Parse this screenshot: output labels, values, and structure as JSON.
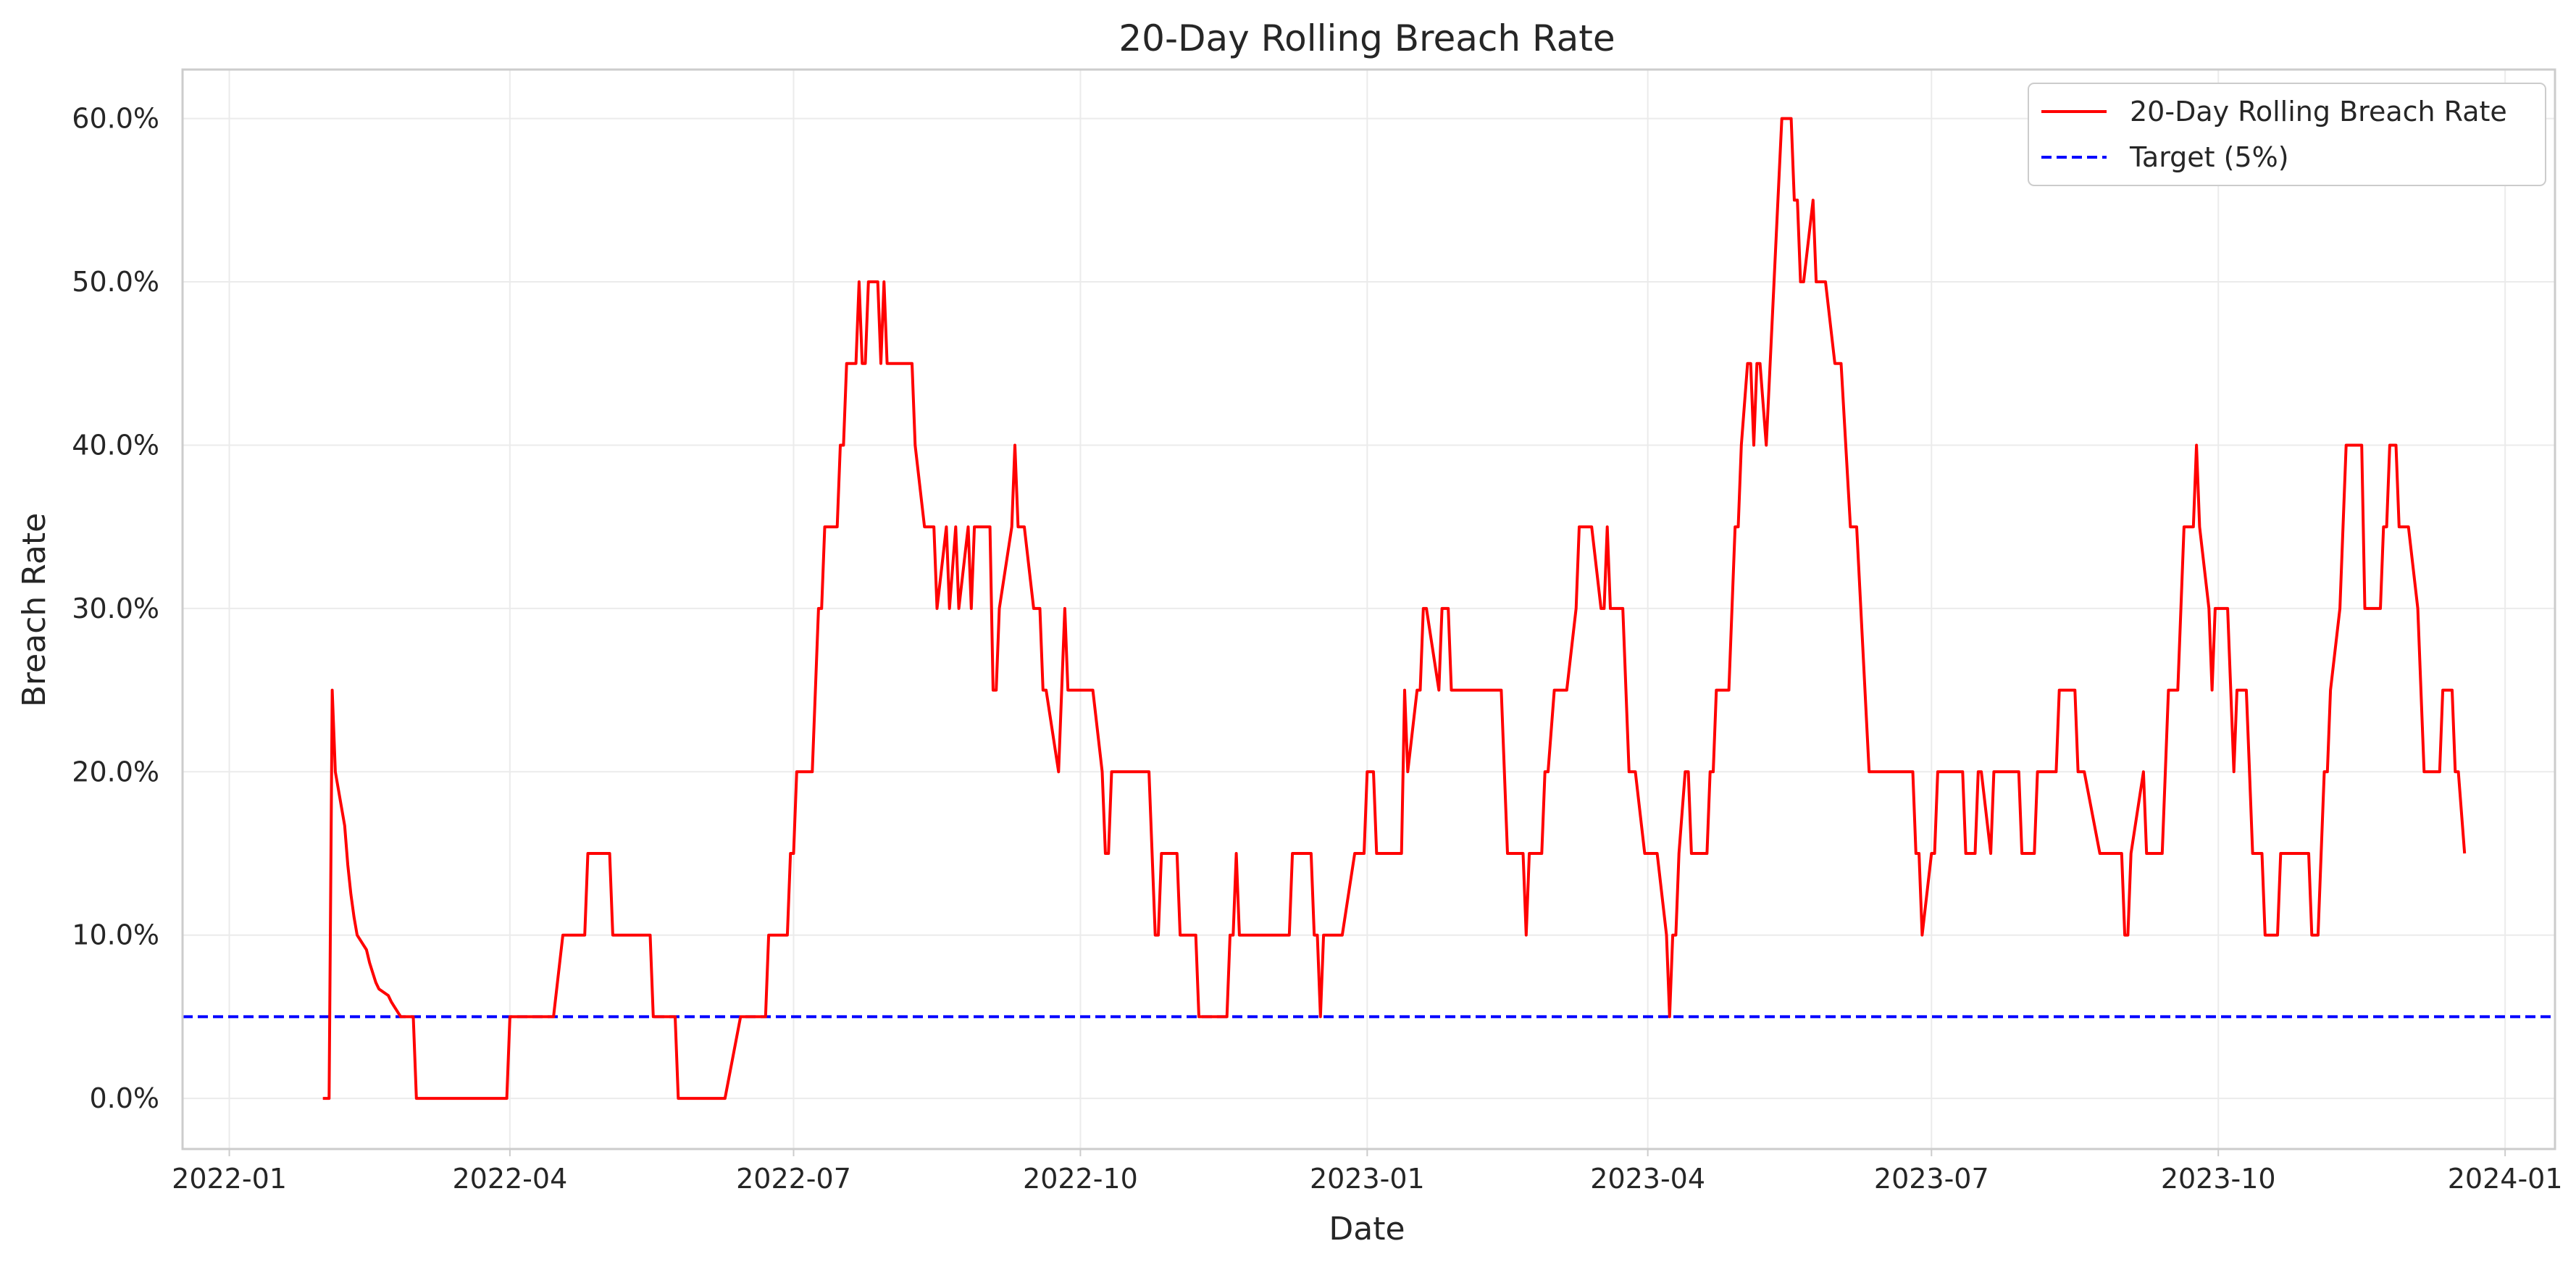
{
  "chart_data": {
    "type": "line",
    "title": "20-Day Rolling Breach Rate",
    "xlabel": "Date",
    "ylabel": "Breach Rate",
    "x_axis_type": "date",
    "xlim": [
      "2021-12-17",
      "2024-01-17"
    ],
    "ylim": [
      -0.031,
      0.63
    ],
    "x_ticks": [
      "2022-01",
      "2022-04",
      "2022-07",
      "2022-10",
      "2023-01",
      "2023-04",
      "2023-07",
      "2023-10",
      "2024-01"
    ],
    "y_ticks": [
      0.0,
      0.1,
      0.2,
      0.3,
      0.4,
      0.5,
      0.6
    ],
    "y_tick_labels": [
      "0.0%",
      "10.0%",
      "20.0%",
      "30.0%",
      "40.0%",
      "50.0%",
      "60.0%"
    ],
    "grid": true,
    "legend_position": "top-right",
    "series": [
      {
        "name": "20-Day Rolling Breach Rate",
        "color": "#ff0000",
        "style": "solid",
        "points": [
          [
            "2022-01-31",
            0.0
          ],
          [
            "2022-02-02",
            0.0
          ],
          [
            "2022-02-03",
            0.25
          ],
          [
            "2022-02-04",
            0.2
          ],
          [
            "2022-02-07",
            0.167
          ],
          [
            "2022-02-08",
            0.143
          ],
          [
            "2022-02-09",
            0.125
          ],
          [
            "2022-02-10",
            0.111
          ],
          [
            "2022-02-11",
            0.1
          ],
          [
            "2022-02-14",
            0.091
          ],
          [
            "2022-02-15",
            0.083
          ],
          [
            "2022-02-16",
            0.077
          ],
          [
            "2022-02-17",
            0.071
          ],
          [
            "2022-02-18",
            0.067
          ],
          [
            "2022-02-21",
            0.063
          ],
          [
            "2022-02-22",
            0.059
          ],
          [
            "2022-02-23",
            0.056
          ],
          [
            "2022-02-24",
            0.053
          ],
          [
            "2022-02-25",
            0.05
          ],
          [
            "2022-02-28",
            0.05
          ],
          [
            "2022-03-01",
            0.05
          ],
          [
            "2022-03-02",
            0.0
          ],
          [
            "2022-03-31",
            0.0
          ],
          [
            "2022-04-01",
            0.05
          ],
          [
            "2022-04-15",
            0.05
          ],
          [
            "2022-04-18",
            0.1
          ],
          [
            "2022-04-25",
            0.1
          ],
          [
            "2022-04-26",
            0.15
          ],
          [
            "2022-05-03",
            0.15
          ],
          [
            "2022-05-04",
            0.1
          ],
          [
            "2022-05-16",
            0.1
          ],
          [
            "2022-05-17",
            0.05
          ],
          [
            "2022-05-24",
            0.05
          ],
          [
            "2022-05-25",
            0.0
          ],
          [
            "2022-06-09",
            0.0
          ],
          [
            "2022-06-14",
            0.05
          ],
          [
            "2022-06-22",
            0.05
          ],
          [
            "2022-06-23",
            0.1
          ],
          [
            "2022-06-29",
            0.1
          ],
          [
            "2022-06-30",
            0.15
          ],
          [
            "2022-07-01",
            0.15
          ],
          [
            "2022-07-02",
            0.2
          ],
          [
            "2022-07-07",
            0.2
          ],
          [
            "2022-07-09",
            0.3
          ],
          [
            "2022-07-10",
            0.3
          ],
          [
            "2022-07-11",
            0.35
          ],
          [
            "2022-07-15",
            0.35
          ],
          [
            "2022-07-16",
            0.4
          ],
          [
            "2022-07-17",
            0.4
          ],
          [
            "2022-07-18",
            0.45
          ],
          [
            "2022-07-21",
            0.45
          ],
          [
            "2022-07-22",
            0.5
          ],
          [
            "2022-07-23",
            0.45
          ],
          [
            "2022-07-24",
            0.45
          ],
          [
            "2022-07-25",
            0.5
          ],
          [
            "2022-07-28",
            0.5
          ],
          [
            "2022-07-29",
            0.45
          ],
          [
            "2022-07-30",
            0.5
          ],
          [
            "2022-07-31",
            0.45
          ],
          [
            "2022-08-08",
            0.45
          ],
          [
            "2022-08-09",
            0.4
          ],
          [
            "2022-08-12",
            0.35
          ],
          [
            "2022-08-15",
            0.35
          ],
          [
            "2022-08-16",
            0.3
          ],
          [
            "2022-08-19",
            0.35
          ],
          [
            "2022-08-20",
            0.3
          ],
          [
            "2022-08-22",
            0.35
          ],
          [
            "2022-08-23",
            0.3
          ],
          [
            "2022-08-26",
            0.35
          ],
          [
            "2022-08-27",
            0.3
          ],
          [
            "2022-08-28",
            0.35
          ],
          [
            "2022-09-02",
            0.35
          ],
          [
            "2022-09-03",
            0.25
          ],
          [
            "2022-09-04",
            0.25
          ],
          [
            "2022-09-05",
            0.3
          ],
          [
            "2022-09-09",
            0.35
          ],
          [
            "2022-09-10",
            0.4
          ],
          [
            "2022-09-11",
            0.35
          ],
          [
            "2022-09-13",
            0.35
          ],
          [
            "2022-09-16",
            0.3
          ],
          [
            "2022-09-18",
            0.3
          ],
          [
            "2022-09-19",
            0.25
          ],
          [
            "2022-09-20",
            0.25
          ],
          [
            "2022-09-24",
            0.2
          ],
          [
            "2022-09-26",
            0.3
          ],
          [
            "2022-09-27",
            0.25
          ],
          [
            "2022-10-05",
            0.25
          ],
          [
            "2022-10-08",
            0.2
          ],
          [
            "2022-10-09",
            0.15
          ],
          [
            "2022-10-10",
            0.15
          ],
          [
            "2022-10-11",
            0.2
          ],
          [
            "2022-10-23",
            0.2
          ],
          [
            "2022-10-25",
            0.1
          ],
          [
            "2022-10-26",
            0.1
          ],
          [
            "2022-10-27",
            0.15
          ],
          [
            "2022-11-01",
            0.15
          ],
          [
            "2022-11-02",
            0.1
          ],
          [
            "2022-11-07",
            0.1
          ],
          [
            "2022-11-08",
            0.05
          ],
          [
            "2022-11-17",
            0.05
          ],
          [
            "2022-11-18",
            0.1
          ],
          [
            "2022-11-19",
            0.1
          ],
          [
            "2022-11-20",
            0.15
          ],
          [
            "2022-11-21",
            0.1
          ],
          [
            "2022-12-07",
            0.1
          ],
          [
            "2022-12-08",
            0.15
          ],
          [
            "2022-12-14",
            0.15
          ],
          [
            "2022-12-15",
            0.1
          ],
          [
            "2022-12-16",
            0.1
          ],
          [
            "2022-12-17",
            0.05
          ],
          [
            "2022-12-18",
            0.1
          ],
          [
            "2022-12-24",
            0.1
          ],
          [
            "2022-12-28",
            0.15
          ],
          [
            "2022-12-31",
            0.15
          ],
          [
            "2023-01-01",
            0.2
          ],
          [
            "2023-01-03",
            0.2
          ],
          [
            "2023-01-04",
            0.15
          ],
          [
            "2023-01-12",
            0.15
          ],
          [
            "2023-01-13",
            0.25
          ],
          [
            "2023-01-14",
            0.2
          ],
          [
            "2023-01-17",
            0.25
          ],
          [
            "2023-01-18",
            0.25
          ],
          [
            "2023-01-19",
            0.3
          ],
          [
            "2023-01-20",
            0.3
          ],
          [
            "2023-01-24",
            0.25
          ],
          [
            "2023-01-25",
            0.3
          ],
          [
            "2023-01-27",
            0.3
          ],
          [
            "2023-01-28",
            0.25
          ],
          [
            "2023-02-13",
            0.25
          ],
          [
            "2023-02-15",
            0.15
          ],
          [
            "2023-02-20",
            0.15
          ],
          [
            "2023-02-21",
            0.1
          ],
          [
            "2023-02-22",
            0.15
          ],
          [
            "2023-02-26",
            0.15
          ],
          [
            "2023-02-27",
            0.2
          ],
          [
            "2023-02-28",
            0.2
          ],
          [
            "2023-03-02",
            0.25
          ],
          [
            "2023-03-06",
            0.25
          ],
          [
            "2023-03-09",
            0.3
          ],
          [
            "2023-03-10",
            0.35
          ],
          [
            "2023-03-14",
            0.35
          ],
          [
            "2023-03-17",
            0.3
          ],
          [
            "2023-03-18",
            0.3
          ],
          [
            "2023-03-19",
            0.35
          ],
          [
            "2023-03-20",
            0.3
          ],
          [
            "2023-03-24",
            0.3
          ],
          [
            "2023-03-26",
            0.2
          ],
          [
            "2023-03-28",
            0.2
          ],
          [
            "2023-03-31",
            0.15
          ],
          [
            "2023-04-04",
            0.15
          ],
          [
            "2023-04-07",
            0.1
          ],
          [
            "2023-04-08",
            0.05
          ],
          [
            "2023-04-09",
            0.1
          ],
          [
            "2023-04-10",
            0.1
          ],
          [
            "2023-04-11",
            0.15
          ],
          [
            "2023-04-13",
            0.2
          ],
          [
            "2023-04-14",
            0.2
          ],
          [
            "2023-04-15",
            0.15
          ],
          [
            "2023-04-20",
            0.15
          ],
          [
            "2023-04-21",
            0.2
          ],
          [
            "2023-04-22",
            0.2
          ],
          [
            "2023-04-23",
            0.25
          ],
          [
            "2023-04-27",
            0.25
          ],
          [
            "2023-04-29",
            0.35
          ],
          [
            "2023-04-30",
            0.35
          ],
          [
            "2023-05-01",
            0.4
          ],
          [
            "2023-05-03",
            0.45
          ],
          [
            "2023-05-04",
            0.45
          ],
          [
            "2023-05-05",
            0.4
          ],
          [
            "2023-05-06",
            0.45
          ],
          [
            "2023-05-07",
            0.45
          ],
          [
            "2023-05-09",
            0.4
          ],
          [
            "2023-05-14",
            0.6
          ],
          [
            "2023-05-17",
            0.6
          ],
          [
            "2023-05-18",
            0.55
          ],
          [
            "2023-05-19",
            0.55
          ],
          [
            "2023-05-20",
            0.5
          ],
          [
            "2023-05-21",
            0.5
          ],
          [
            "2023-05-24",
            0.55
          ],
          [
            "2023-05-25",
            0.5
          ],
          [
            "2023-05-28",
            0.5
          ],
          [
            "2023-05-31",
            0.45
          ],
          [
            "2023-06-02",
            0.45
          ],
          [
            "2023-06-05",
            0.35
          ],
          [
            "2023-06-07",
            0.35
          ],
          [
            "2023-06-11",
            0.2
          ],
          [
            "2023-06-25",
            0.2
          ],
          [
            "2023-06-26",
            0.15
          ],
          [
            "2023-06-27",
            0.15
          ],
          [
            "2023-06-28",
            0.1
          ],
          [
            "2023-07-01",
            0.15
          ],
          [
            "2023-07-02",
            0.15
          ],
          [
            "2023-07-03",
            0.2
          ],
          [
            "2023-07-11",
            0.2
          ],
          [
            "2023-07-12",
            0.15
          ],
          [
            "2023-07-15",
            0.15
          ],
          [
            "2023-07-16",
            0.2
          ],
          [
            "2023-07-17",
            0.2
          ],
          [
            "2023-07-20",
            0.15
          ],
          [
            "2023-07-21",
            0.2
          ],
          [
            "2023-07-29",
            0.2
          ],
          [
            "2023-07-30",
            0.15
          ],
          [
            "2023-08-03",
            0.15
          ],
          [
            "2023-08-04",
            0.2
          ],
          [
            "2023-08-10",
            0.2
          ],
          [
            "2023-08-11",
            0.25
          ],
          [
            "2023-08-16",
            0.25
          ],
          [
            "2023-08-17",
            0.2
          ],
          [
            "2023-08-19",
            0.2
          ],
          [
            "2023-08-24",
            0.15
          ],
          [
            "2023-08-31",
            0.15
          ],
          [
            "2023-09-01",
            0.1
          ],
          [
            "2023-09-02",
            0.1
          ],
          [
            "2023-09-03",
            0.15
          ],
          [
            "2023-09-07",
            0.2
          ],
          [
            "2023-09-08",
            0.15
          ],
          [
            "2023-09-13",
            0.15
          ],
          [
            "2023-09-15",
            0.25
          ],
          [
            "2023-09-18",
            0.25
          ],
          [
            "2023-09-19",
            0.3
          ],
          [
            "2023-09-20",
            0.35
          ],
          [
            "2023-09-23",
            0.35
          ],
          [
            "2023-09-24",
            0.4
          ],
          [
            "2023-09-25",
            0.35
          ],
          [
            "2023-09-28",
            0.3
          ],
          [
            "2023-09-29",
            0.25
          ],
          [
            "2023-09-30",
            0.3
          ],
          [
            "2023-10-04",
            0.3
          ],
          [
            "2023-10-06",
            0.2
          ],
          [
            "2023-10-07",
            0.25
          ],
          [
            "2023-10-10",
            0.25
          ],
          [
            "2023-10-11",
            0.2
          ],
          [
            "2023-10-12",
            0.15
          ],
          [
            "2023-10-15",
            0.15
          ],
          [
            "2023-10-16",
            0.1
          ],
          [
            "2023-10-20",
            0.1
          ],
          [
            "2023-10-21",
            0.15
          ],
          [
            "2023-10-30",
            0.15
          ],
          [
            "2023-10-31",
            0.1
          ],
          [
            "2023-11-02",
            0.1
          ],
          [
            "2023-11-04",
            0.2
          ],
          [
            "2023-11-05",
            0.2
          ],
          [
            "2023-11-06",
            0.25
          ],
          [
            "2023-11-09",
            0.3
          ],
          [
            "2023-11-11",
            0.4
          ],
          [
            "2023-11-16",
            0.4
          ],
          [
            "2023-11-17",
            0.3
          ],
          [
            "2023-11-22",
            0.3
          ],
          [
            "2023-11-23",
            0.35
          ],
          [
            "2023-11-24",
            0.35
          ],
          [
            "2023-11-25",
            0.4
          ],
          [
            "2023-11-27",
            0.4
          ],
          [
            "2023-11-28",
            0.35
          ],
          [
            "2023-12-01",
            0.35
          ],
          [
            "2023-12-04",
            0.3
          ],
          [
            "2023-12-06",
            0.2
          ],
          [
            "2023-12-11",
            0.2
          ],
          [
            "2023-12-12",
            0.25
          ],
          [
            "2023-12-15",
            0.25
          ],
          [
            "2023-12-16",
            0.2
          ],
          [
            "2023-12-17",
            0.2
          ],
          [
            "2023-12-19",
            0.15
          ]
        ]
      },
      {
        "name": "Target (5%)",
        "color": "#0000ff",
        "style": "dashed",
        "value": 0.05
      }
    ]
  }
}
